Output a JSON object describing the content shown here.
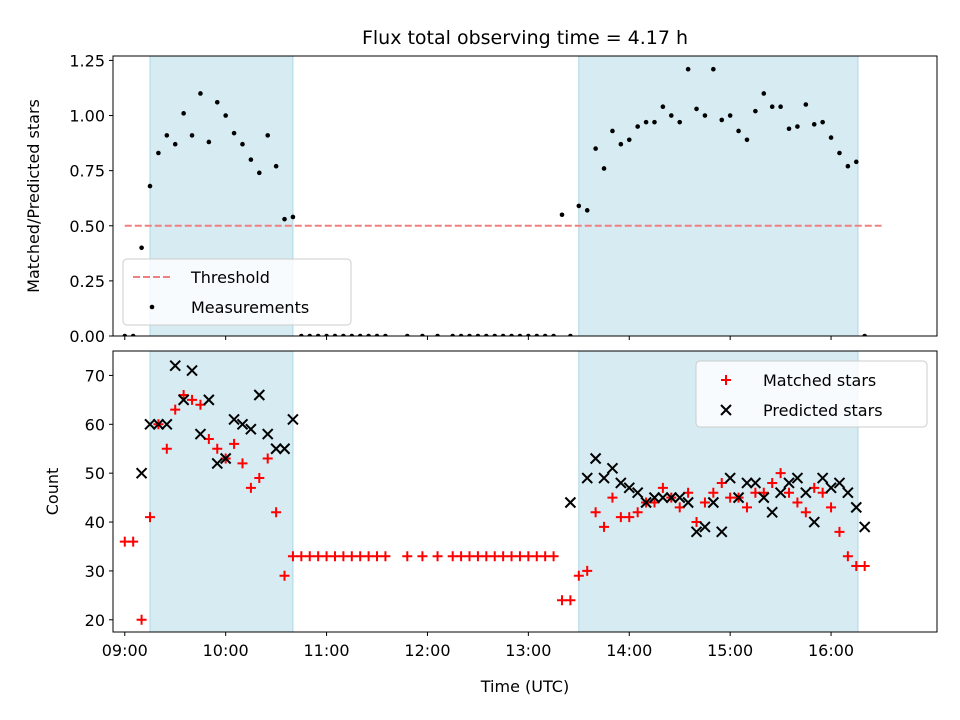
{
  "chart_data": [
    {
      "type": "scatter",
      "title": "Flux total observing time = 4.17 h",
      "ylabel": "Matched/Predicted stars",
      "xlim": [
        "08:53",
        "17:03"
      ],
      "ylim": [
        0,
        1.27
      ],
      "yticks": [
        "0.00",
        "0.25",
        "0.50",
        "0.75",
        "1.00",
        "1.25"
      ],
      "shaded_intervals": [
        [
          "09:15",
          "10:40"
        ],
        [
          "13:30",
          "16:16"
        ]
      ],
      "threshold": {
        "name": "Threshold",
        "value": 0.5,
        "x_range": [
          "09:00",
          "16:30"
        ],
        "color": "#f08080",
        "style": "dashed"
      },
      "series": [
        {
          "name": "Measurements",
          "color": "#000000",
          "marker": "dot",
          "points": [
            [
              "09:00",
              0.0
            ],
            [
              "09:05",
              0.0
            ],
            [
              "09:10",
              0.4
            ],
            [
              "09:15",
              0.68
            ],
            [
              "09:20",
              0.83
            ],
            [
              "09:25",
              0.91
            ],
            [
              "09:30",
              0.87
            ],
            [
              "09:35",
              1.01
            ],
            [
              "09:40",
              0.91
            ],
            [
              "09:45",
              1.1
            ],
            [
              "09:50",
              0.88
            ],
            [
              "09:55",
              1.06
            ],
            [
              "10:00",
              1.0
            ],
            [
              "10:05",
              0.92
            ],
            [
              "10:10",
              0.87
            ],
            [
              "10:15",
              0.8
            ],
            [
              "10:20",
              0.74
            ],
            [
              "10:25",
              0.91
            ],
            [
              "10:30",
              0.77
            ],
            [
              "10:35",
              0.53
            ],
            [
              "10:40",
              0.54
            ],
            [
              "10:45",
              0.0
            ],
            [
              "10:50",
              0.0
            ],
            [
              "10:55",
              0.0
            ],
            [
              "11:00",
              0.0
            ],
            [
              "11:05",
              0.0
            ],
            [
              "11:10",
              0.0
            ],
            [
              "11:15",
              0.0
            ],
            [
              "11:20",
              0.0
            ],
            [
              "11:25",
              0.0
            ],
            [
              "11:30",
              0.0
            ],
            [
              "11:35",
              0.0
            ],
            [
              "11:48",
              0.0
            ],
            [
              "11:57",
              0.0
            ],
            [
              "12:06",
              0.0
            ],
            [
              "12:15",
              0.0
            ],
            [
              "12:20",
              0.0
            ],
            [
              "12:25",
              0.0
            ],
            [
              "12:30",
              0.0
            ],
            [
              "12:35",
              0.0
            ],
            [
              "12:40",
              0.0
            ],
            [
              "12:45",
              0.0
            ],
            [
              "12:50",
              0.0
            ],
            [
              "12:55",
              0.0
            ],
            [
              "13:00",
              0.0
            ],
            [
              "13:05",
              0.0
            ],
            [
              "13:10",
              0.0
            ],
            [
              "13:15",
              0.0
            ],
            [
              "13:20",
              0.55
            ],
            [
              "13:25",
              0.0
            ],
            [
              "13:30",
              0.59
            ],
            [
              "13:35",
              0.57
            ],
            [
              "13:40",
              0.85
            ],
            [
              "13:45",
              0.76
            ],
            [
              "13:50",
              0.93
            ],
            [
              "13:55",
              0.87
            ],
            [
              "14:00",
              0.89
            ],
            [
              "14:05",
              0.95
            ],
            [
              "14:10",
              0.97
            ],
            [
              "14:15",
              0.97
            ],
            [
              "14:20",
              1.04
            ],
            [
              "14:25",
              1.0
            ],
            [
              "14:30",
              0.97
            ],
            [
              "14:35",
              1.21
            ],
            [
              "14:40",
              1.03
            ],
            [
              "14:45",
              1.0
            ],
            [
              "14:50",
              1.21
            ],
            [
              "14:55",
              0.98
            ],
            [
              "15:00",
              1.0
            ],
            [
              "15:05",
              0.93
            ],
            [
              "15:10",
              0.89
            ],
            [
              "15:15",
              1.02
            ],
            [
              "15:20",
              1.1
            ],
            [
              "15:25",
              1.04
            ],
            [
              "15:30",
              1.04
            ],
            [
              "15:35",
              0.94
            ],
            [
              "15:40",
              0.95
            ],
            [
              "15:45",
              1.05
            ],
            [
              "15:50",
              0.96
            ],
            [
              "15:55",
              0.97
            ],
            [
              "16:00",
              0.9
            ],
            [
              "16:05",
              0.83
            ],
            [
              "16:10",
              0.77
            ],
            [
              "16:15",
              0.79
            ],
            [
              "16:20",
              0.0
            ]
          ]
        }
      ],
      "legend": {
        "placement": "lower-left",
        "entries": [
          "Threshold",
          "Measurements"
        ]
      }
    },
    {
      "type": "scatter",
      "xlabel": "Time (UTC)",
      "ylabel": "Count",
      "xlim": [
        "08:53",
        "17:03"
      ],
      "ylim": [
        17.5,
        75
      ],
      "xticks": [
        "09:00",
        "10:00",
        "11:00",
        "12:00",
        "13:00",
        "14:00",
        "15:00",
        "16:00"
      ],
      "yticks": [
        "20",
        "30",
        "40",
        "50",
        "60",
        "70"
      ],
      "shaded_intervals": [
        [
          "09:15",
          "10:40"
        ],
        [
          "13:30",
          "16:16"
        ]
      ],
      "series": [
        {
          "name": "Matched stars",
          "color": "#ff0000",
          "marker": "plus",
          "points": [
            [
              "09:00",
              36
            ],
            [
              "09:05",
              36
            ],
            [
              "09:10",
              20
            ],
            [
              "09:15",
              41
            ],
            [
              "09:20",
              60
            ],
            [
              "09:25",
              55
            ],
            [
              "09:30",
              63
            ],
            [
              "09:35",
              66
            ],
            [
              "09:40",
              65
            ],
            [
              "09:45",
              64
            ],
            [
              "09:50",
              57
            ],
            [
              "09:55",
              55
            ],
            [
              "10:00",
              53
            ],
            [
              "10:05",
              56
            ],
            [
              "10:10",
              52
            ],
            [
              "10:15",
              47
            ],
            [
              "10:20",
              49
            ],
            [
              "10:25",
              53
            ],
            [
              "10:30",
              42
            ],
            [
              "10:35",
              29
            ],
            [
              "10:40",
              33
            ],
            [
              "10:45",
              33
            ],
            [
              "10:50",
              33
            ],
            [
              "10:55",
              33
            ],
            [
              "11:00",
              33
            ],
            [
              "11:05",
              33
            ],
            [
              "11:10",
              33
            ],
            [
              "11:15",
              33
            ],
            [
              "11:20",
              33
            ],
            [
              "11:25",
              33
            ],
            [
              "11:30",
              33
            ],
            [
              "11:35",
              33
            ],
            [
              "11:48",
              33
            ],
            [
              "11:57",
              33
            ],
            [
              "12:06",
              33
            ],
            [
              "12:15",
              33
            ],
            [
              "12:20",
              33
            ],
            [
              "12:25",
              33
            ],
            [
              "12:30",
              33
            ],
            [
              "12:35",
              33
            ],
            [
              "12:40",
              33
            ],
            [
              "12:45",
              33
            ],
            [
              "12:50",
              33
            ],
            [
              "12:55",
              33
            ],
            [
              "13:00",
              33
            ],
            [
              "13:05",
              33
            ],
            [
              "13:10",
              33
            ],
            [
              "13:15",
              33
            ],
            [
              "13:20",
              24
            ],
            [
              "13:25",
              24
            ],
            [
              "13:30",
              29
            ],
            [
              "13:35",
              30
            ],
            [
              "13:40",
              42
            ],
            [
              "13:45",
              39
            ],
            [
              "13:50",
              45
            ],
            [
              "13:55",
              41
            ],
            [
              "14:00",
              41
            ],
            [
              "14:05",
              42
            ],
            [
              "14:10",
              44
            ],
            [
              "14:15",
              44
            ],
            [
              "14:20",
              47
            ],
            [
              "14:25",
              45
            ],
            [
              "14:30",
              43
            ],
            [
              "14:35",
              46
            ],
            [
              "14:40",
              40
            ],
            [
              "14:45",
              44
            ],
            [
              "14:50",
              46
            ],
            [
              "14:55",
              48
            ],
            [
              "15:00",
              45
            ],
            [
              "15:05",
              45
            ],
            [
              "15:10",
              43
            ],
            [
              "15:15",
              46
            ],
            [
              "15:20",
              46
            ],
            [
              "15:25",
              48
            ],
            [
              "15:30",
              50
            ],
            [
              "15:35",
              46
            ],
            [
              "15:40",
              44
            ],
            [
              "15:45",
              42
            ],
            [
              "15:50",
              47
            ],
            [
              "15:55",
              46
            ],
            [
              "16:00",
              43
            ],
            [
              "16:05",
              38
            ],
            [
              "16:10",
              33
            ],
            [
              "16:15",
              31
            ],
            [
              "16:20",
              31
            ]
          ]
        },
        {
          "name": "Predicted stars",
          "color": "#000000",
          "marker": "x",
          "points": [
            [
              "09:10",
              50
            ],
            [
              "09:15",
              60
            ],
            [
              "09:20",
              60
            ],
            [
              "09:25",
              60
            ],
            [
              "09:30",
              72
            ],
            [
              "09:35",
              65
            ],
            [
              "09:40",
              71
            ],
            [
              "09:45",
              58
            ],
            [
              "09:50",
              65
            ],
            [
              "09:55",
              52
            ],
            [
              "10:00",
              53
            ],
            [
              "10:05",
              61
            ],
            [
              "10:10",
              60
            ],
            [
              "10:15",
              59
            ],
            [
              "10:20",
              66
            ],
            [
              "10:25",
              58
            ],
            [
              "10:30",
              55
            ],
            [
              "10:35",
              55
            ],
            [
              "10:40",
              61
            ],
            [
              "13:25",
              44
            ],
            [
              "13:35",
              49
            ],
            [
              "13:40",
              53
            ],
            [
              "13:45",
              49
            ],
            [
              "13:50",
              51
            ],
            [
              "13:55",
              48
            ],
            [
              "14:00",
              47
            ],
            [
              "14:05",
              46
            ],
            [
              "14:10",
              44
            ],
            [
              "14:15",
              45
            ],
            [
              "14:20",
              45
            ],
            [
              "14:25",
              45
            ],
            [
              "14:30",
              45
            ],
            [
              "14:35",
              44
            ],
            [
              "14:40",
              38
            ],
            [
              "14:45",
              39
            ],
            [
              "14:50",
              44
            ],
            [
              "14:55",
              38
            ],
            [
              "15:00",
              49
            ],
            [
              "15:05",
              45
            ],
            [
              "15:10",
              48
            ],
            [
              "15:15",
              48
            ],
            [
              "15:20",
              45
            ],
            [
              "15:25",
              42
            ],
            [
              "15:30",
              46
            ],
            [
              "15:35",
              48
            ],
            [
              "15:40",
              49
            ],
            [
              "15:45",
              46
            ],
            [
              "15:50",
              40
            ],
            [
              "15:55",
              49
            ],
            [
              "16:00",
              47
            ],
            [
              "16:05",
              48
            ],
            [
              "16:10",
              46
            ],
            [
              "16:15",
              43
            ],
            [
              "16:20",
              39
            ]
          ]
        }
      ],
      "legend": {
        "placement": "upper-right",
        "entries": [
          "Matched stars",
          "Predicted stars"
        ]
      }
    }
  ],
  "style": {
    "shade_color": "#add8e6"
  }
}
